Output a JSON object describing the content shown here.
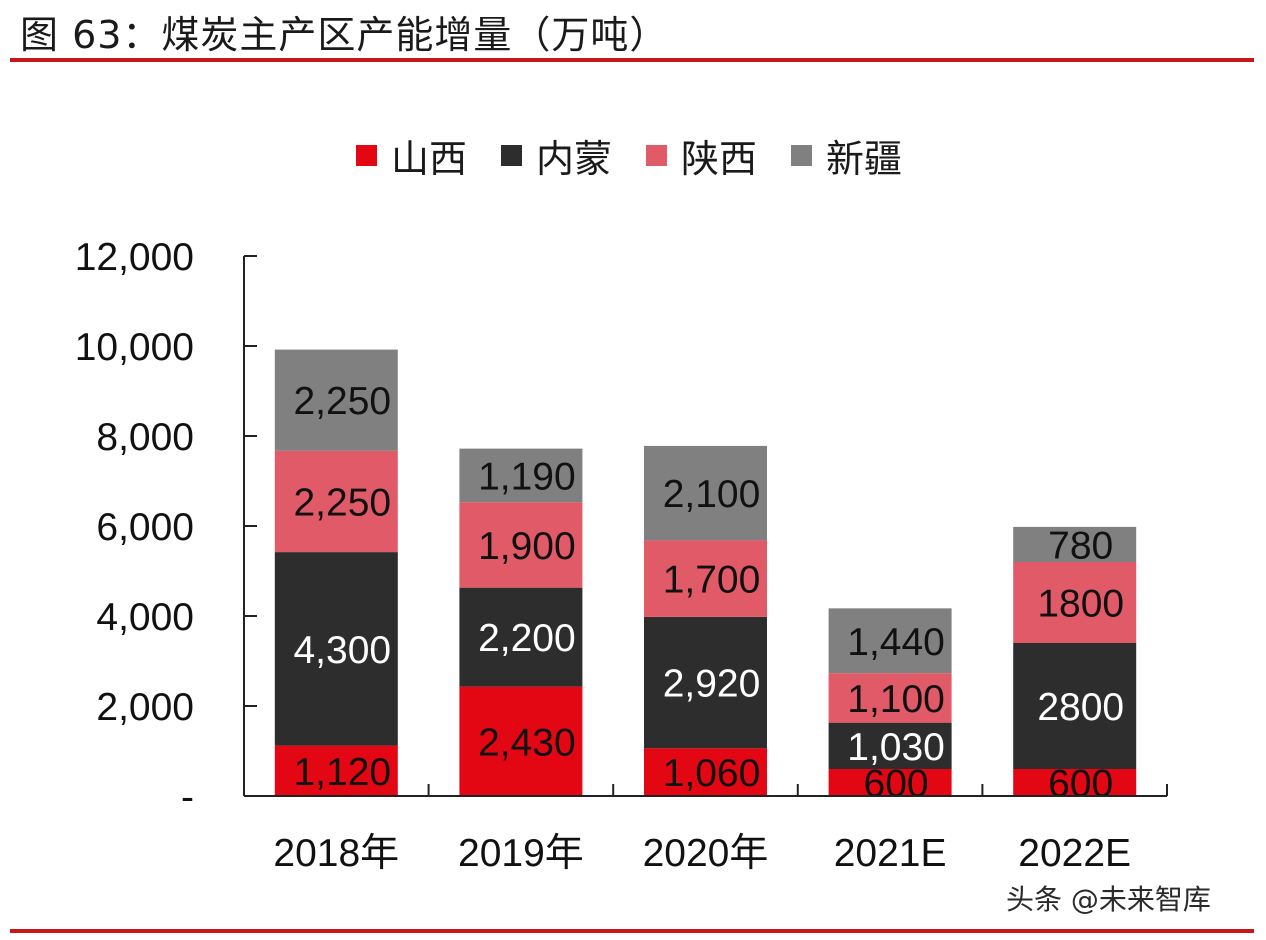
{
  "title": "图 63：煤炭主产区产能增量（万吨）",
  "watermark": "头条 @未来智库",
  "chart_data": {
    "type": "bar",
    "stacked": true,
    "title": "煤炭主产区产能增量（万吨）",
    "figure_label": "图 63",
    "xlabel": "",
    "ylabel": "",
    "unit": "万吨",
    "categories": [
      "2018年",
      "2019年",
      "2020年",
      "2021E",
      "2022E"
    ],
    "series": [
      {
        "name": "山西",
        "color": "#e30613",
        "label_color": "#111111",
        "values": [
          1120,
          2430,
          1060,
          600,
          600
        ],
        "labels": [
          "1,120",
          "2,430",
          "1,060",
          "600",
          "600"
        ]
      },
      {
        "name": "内蒙",
        "color": "#2d2d2d",
        "label_color": "#ffffff",
        "values": [
          4300,
          2200,
          2920,
          1030,
          2800
        ],
        "labels": [
          "4,300",
          "2,200",
          "2,920",
          "1,030",
          "2800"
        ]
      },
      {
        "name": "陕西",
        "color": "#e05a67",
        "label_color": "#111111",
        "values": [
          2250,
          1900,
          1700,
          1100,
          1800
        ],
        "labels": [
          "2,250",
          "1,900",
          "1,700",
          "1,100",
          "1800"
        ]
      },
      {
        "name": "新疆",
        "color": "#808080",
        "label_color": "#111111",
        "values": [
          2250,
          1190,
          2100,
          1440,
          780
        ],
        "labels": [
          "2,250",
          "1,190",
          "2,100",
          "1,440",
          "780"
        ]
      }
    ],
    "ylim": [
      0,
      12000
    ],
    "yticks": [
      0,
      2000,
      4000,
      6000,
      8000,
      10000,
      12000
    ],
    "ytick_labels": [
      "-",
      "2,000",
      "4,000",
      "6,000",
      "8,000",
      "10,000",
      "12,000"
    ],
    "grid": false,
    "legend_position": "top-center"
  }
}
